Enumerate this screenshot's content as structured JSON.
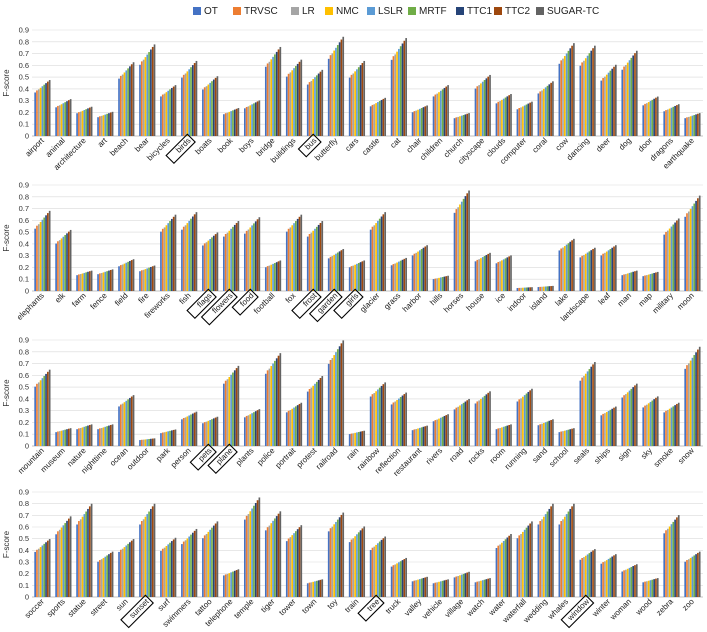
{
  "legend": [
    "OT",
    "TRVSC",
    "LR",
    "NMC",
    "LSLR",
    "MRTF",
    "TTC1",
    "TTC2",
    "SUGAR-TC"
  ],
  "colors": {
    "OT": "#4472c4",
    "TRVSC": "#ed7d31",
    "LR": "#a5a5a5",
    "NMC": "#ffc000",
    "LSLR": "#5b9bd5",
    "MRTF": "#70ad47",
    "TTC1": "#264478",
    "TTC2": "#9e480e",
    "SUGAR-TC": "#636363"
  },
  "y_axis_label": "F-score",
  "chart_data": [
    {
      "type": "bar",
      "ylabel": "F-score",
      "ylim": [
        0,
        0.9
      ],
      "yticks": [
        "0",
        "0.1",
        "0.2",
        "0.3",
        "0.4",
        "0.5",
        "0.6",
        "0.7",
        "0.8",
        "0.9"
      ],
      "boxed": [
        "birds",
        "bus"
      ],
      "categories": [
        "airport",
        "animal",
        "architecture",
        "art",
        "beach",
        "bear",
        "bicycles",
        "birds",
        "boats",
        "book",
        "boys",
        "bridge",
        "buildings",
        "bus",
        "butterfly",
        "cars",
        "castle",
        "cat",
        "chair",
        "children",
        "church",
        "cityscape",
        "clouds",
        "computer",
        "coral",
        "cow",
        "dancing",
        "deer",
        "dog",
        "door",
        "dragons",
        "earthquake"
      ],
      "base": [
        0.44,
        0.29,
        0.23,
        0.19,
        0.58,
        0.72,
        0.4,
        0.59,
        0.47,
        0.22,
        0.28,
        0.7,
        0.6,
        0.52,
        0.78,
        0.59,
        0.3,
        0.77,
        0.24,
        0.4,
        0.18,
        0.48,
        0.33,
        0.27,
        0.43,
        0.73,
        0.71,
        0.56,
        0.67,
        0.31,
        0.25,
        0.18
      ]
    },
    {
      "type": "bar",
      "ylabel": "F-score",
      "ylim": [
        0,
        0.9
      ],
      "yticks": [
        "0",
        "0.1",
        "0.2",
        "0.3",
        "0.4",
        "0.5",
        "0.6",
        "0.7",
        "0.8",
        "0.9"
      ],
      "boxed": [
        "flags",
        "flowers",
        "food",
        "frost",
        "garden",
        "girls"
      ],
      "categories": [
        "elephants",
        "elk",
        "farm",
        "fence",
        "field",
        "fire",
        "fireworks",
        "fish",
        "flags",
        "flowers",
        "food",
        "football",
        "fox",
        "frost",
        "garden",
        "girls",
        "glacier",
        "grass",
        "harbor",
        "hills",
        "horses",
        "house",
        "ice",
        "indoor",
        "island",
        "lake",
        "landscape",
        "leaf",
        "man",
        "map",
        "military",
        "moon"
      ],
      "base": [
        0.63,
        0.48,
        0.16,
        0.17,
        0.25,
        0.2,
        0.6,
        0.62,
        0.46,
        0.55,
        0.58,
        0.24,
        0.6,
        0.55,
        0.33,
        0.24,
        0.62,
        0.26,
        0.36,
        0.12,
        0.79,
        0.3,
        0.28,
        0.03,
        0.04,
        0.41,
        0.34,
        0.36,
        0.16,
        0.15,
        0.57,
        0.75
      ]
    },
    {
      "type": "bar",
      "ylabel": "F-score",
      "ylim": [
        0,
        0.9
      ],
      "yticks": [
        "0",
        "0.1",
        "0.2",
        "0.3",
        "0.4",
        "0.5",
        "0.6",
        "0.7",
        "0.8",
        "0.9"
      ],
      "boxed": [
        "pets",
        "plane"
      ],
      "categories": [
        "mountain",
        "museum",
        "nature",
        "nighttime",
        "ocean",
        "outdoor",
        "park",
        "person",
        "pets",
        "plane",
        "plants",
        "police",
        "portrait",
        "protest",
        "railroad",
        "rain",
        "rainbow",
        "reflection",
        "restaurant",
        "rivers",
        "road",
        "rocks",
        "room",
        "running",
        "sand",
        "school",
        "seals",
        "ships",
        "sign",
        "sky",
        "smoke",
        "snow"
      ],
      "base": [
        0.6,
        0.14,
        0.17,
        0.17,
        0.4,
        0.06,
        0.13,
        0.27,
        0.23,
        0.63,
        0.29,
        0.73,
        0.34,
        0.55,
        0.83,
        0.12,
        0.5,
        0.42,
        0.16,
        0.25,
        0.37,
        0.43,
        0.17,
        0.45,
        0.21,
        0.14,
        0.66,
        0.31,
        0.49,
        0.39,
        0.34,
        0.78
      ]
    },
    {
      "type": "bar",
      "ylabel": "F-score",
      "ylim": [
        0,
        0.9
      ],
      "yticks": [
        "0",
        "0.1",
        "0.2",
        "0.3",
        "0.4",
        "0.5",
        "0.6",
        "0.7",
        "0.8",
        "0.9"
      ],
      "boxed": [
        "sunset",
        "tree",
        "window"
      ],
      "categories": [
        "soccer",
        "sports",
        "statue",
        "street",
        "sun",
        "sunset",
        "surf",
        "swimmers",
        "tattoo",
        "telephone",
        "temple",
        "tiger",
        "tower",
        "town",
        "toy",
        "train",
        "tree",
        "truck",
        "valley",
        "vehicle",
        "village",
        "watch",
        "water",
        "waterfall",
        "wedding",
        "whales",
        "window",
        "winter",
        "woman",
        "wood",
        "zebra",
        "zoo"
      ],
      "base": [
        0.46,
        0.64,
        0.74,
        0.36,
        0.46,
        0.74,
        0.47,
        0.54,
        0.6,
        0.22,
        0.79,
        0.68,
        0.57,
        0.14,
        0.67,
        0.56,
        0.48,
        0.31,
        0.16,
        0.14,
        0.2,
        0.15,
        0.5,
        0.6,
        0.74,
        0.74,
        0.38,
        0.34,
        0.26,
        0.15,
        0.65,
        0.36
      ]
    }
  ]
}
